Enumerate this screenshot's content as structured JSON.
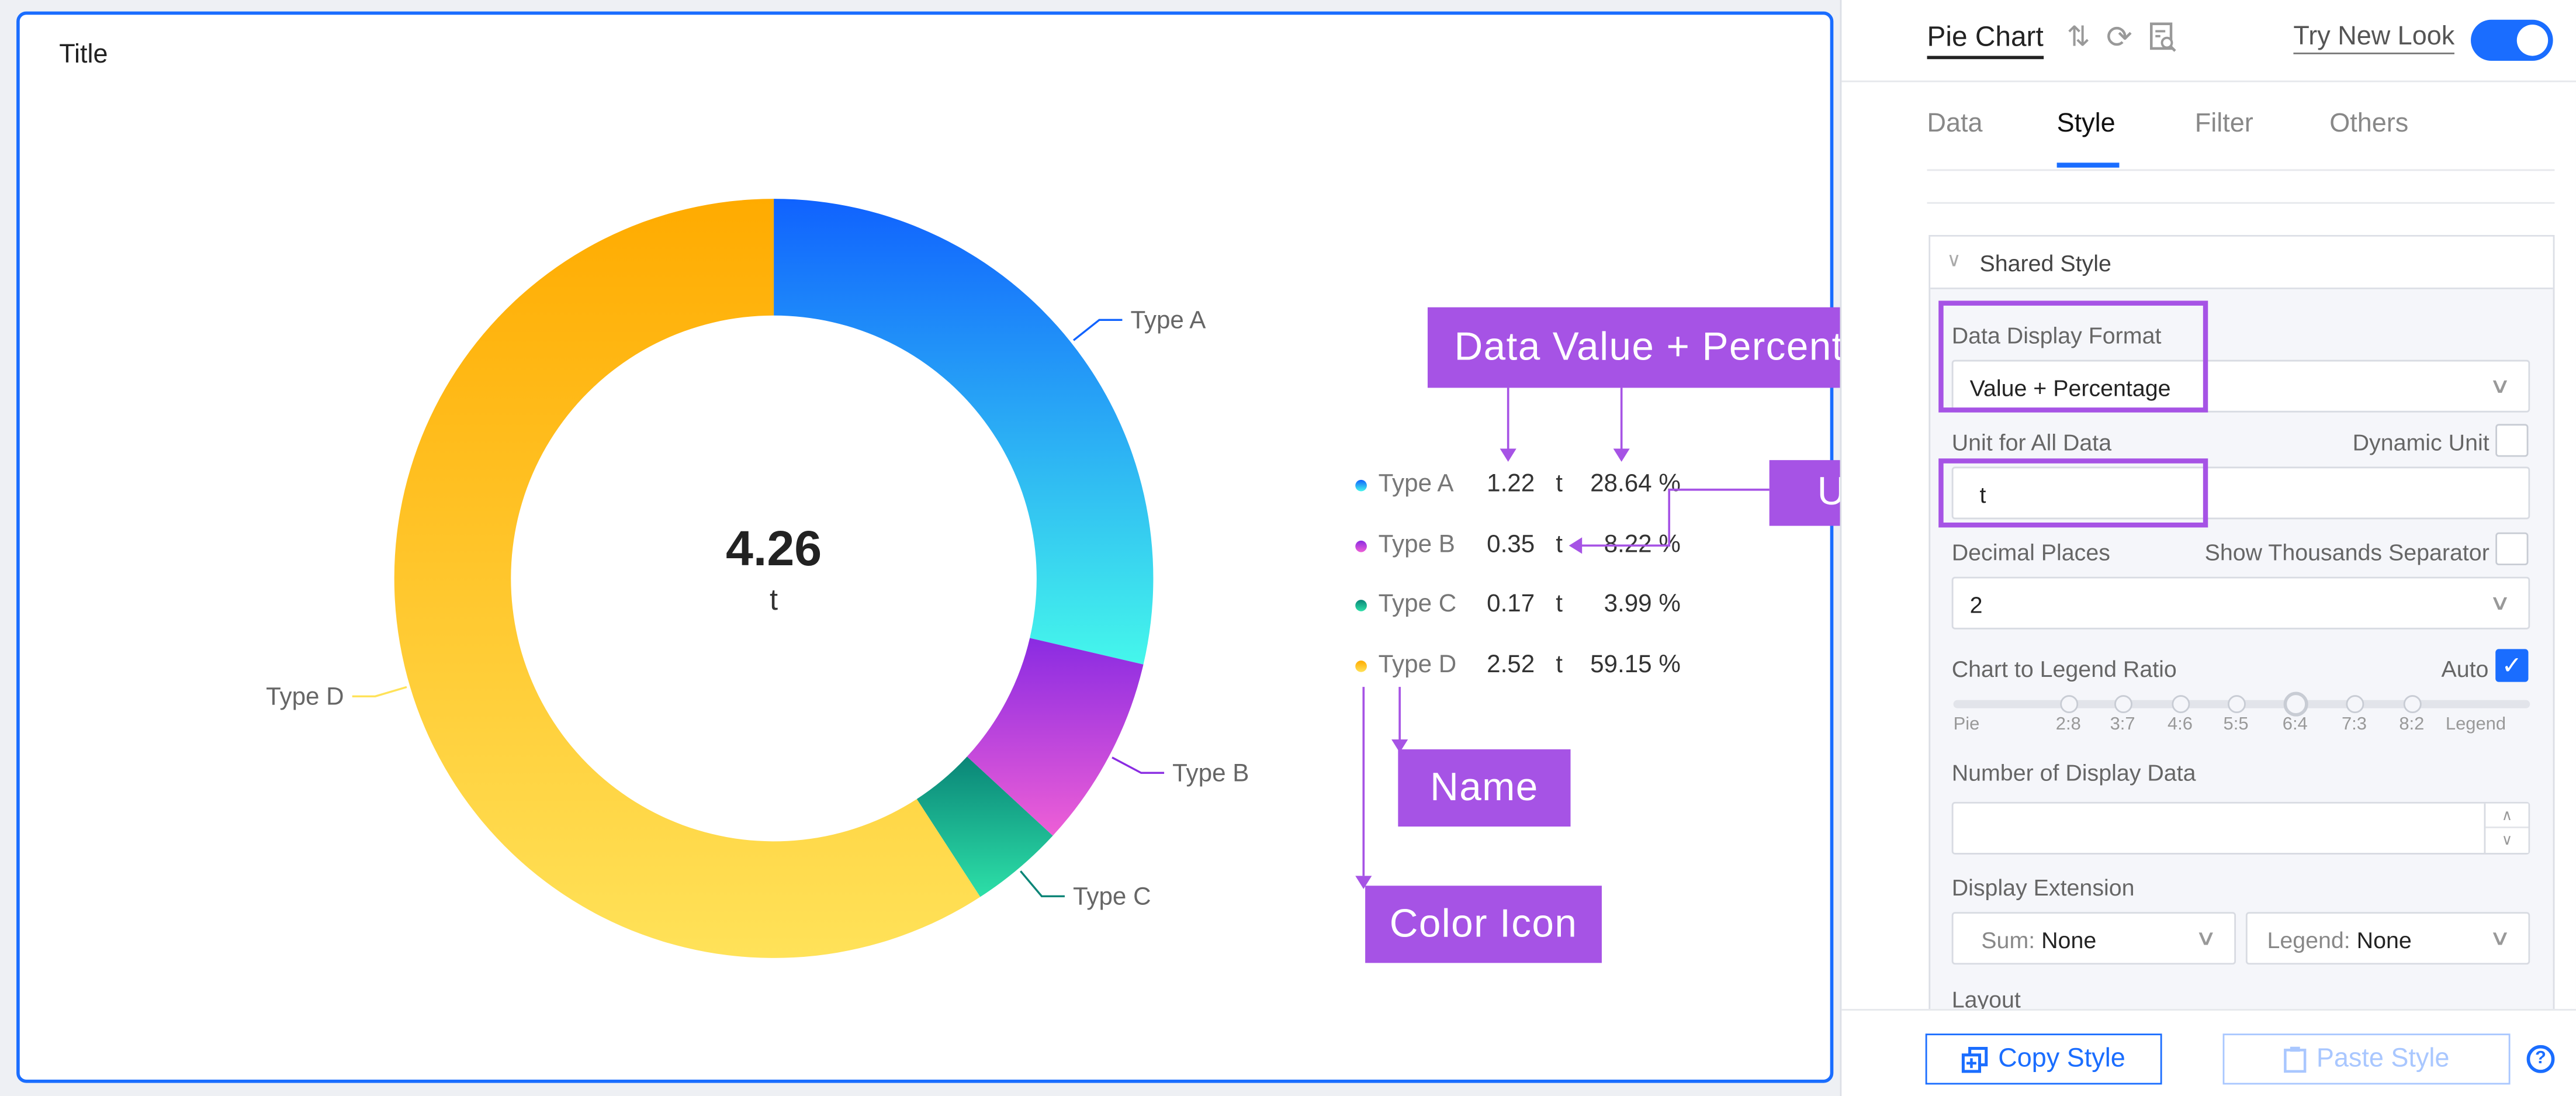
{
  "chart": {
    "title": "Title",
    "total": "4.26",
    "unit": "t"
  },
  "chart_data": {
    "type": "pie",
    "title": "Title",
    "center_total": 4.26,
    "unit": "t",
    "categories": [
      "Type A",
      "Type B",
      "Type C",
      "Type D"
    ],
    "values": [
      1.22,
      0.35,
      0.17,
      2.52
    ],
    "percentages": [
      28.64,
      8.22,
      3.99,
      59.15
    ],
    "colors": [
      [
        "#1062fe",
        "#45f7eb"
      ],
      [
        "#8a2be2",
        "#ee5fd6"
      ],
      [
        "#0a8577",
        "#2de0a8"
      ],
      [
        "#ffab00",
        "#ffe259"
      ]
    ],
    "legend_placement": "right"
  },
  "legend": {
    "rows": [
      {
        "name": "Type A",
        "value": "1.22",
        "unit": "t",
        "pct": "28.64 %"
      },
      {
        "name": "Type B",
        "value": "0.35",
        "unit": "t",
        "pct": "8.22 %"
      },
      {
        "name": "Type C",
        "value": "0.17",
        "unit": "t",
        "pct": "3.99 %"
      },
      {
        "name": "Type D",
        "value": "2.52",
        "unit": "t",
        "pct": "59.15 %"
      }
    ]
  },
  "annotations": {
    "data_value_pct": "Data Value + Percentage",
    "unit": "Unit",
    "name": "Name",
    "color_icon": "Color Icon",
    "color": "#a653e5"
  },
  "panel": {
    "title": "Pie Chart",
    "try_new_look": "Try New Look",
    "try_new_look_on": true,
    "tabs": [
      "Data",
      "Style",
      "Filter",
      "Others"
    ],
    "active_tab": "Style",
    "section": "Shared Style",
    "data_display_format_label": "Data Display Format",
    "data_display_format": "Value + Percentage",
    "unit_label": "Unit for All Data",
    "dynamic_unit_label": "Dynamic Unit",
    "unit_value": "t",
    "decimal_label": "Decimal Places",
    "thousands_label": "Show Thousands Separator",
    "decimal_value": "2",
    "ratio_label": "Chart to Legend Ratio",
    "auto_label": "Auto",
    "ratio_ticks": [
      "Pie",
      "2:8",
      "3:7",
      "4:6",
      "5:5",
      "6:4",
      "7:3",
      "8:2",
      "Legend"
    ],
    "ratio_selected": "6:4",
    "num_display_label": "Number of Display Data",
    "num_display_value": "",
    "display_ext_label": "Display Extension",
    "sum_label": "Sum:",
    "sum_value": "None",
    "legend_label": "Legend:",
    "legend_value": "None",
    "layout_label": "Layout",
    "copy_style": "Copy Style",
    "paste_style": "Paste Style",
    "accent": "#1a6dff"
  }
}
